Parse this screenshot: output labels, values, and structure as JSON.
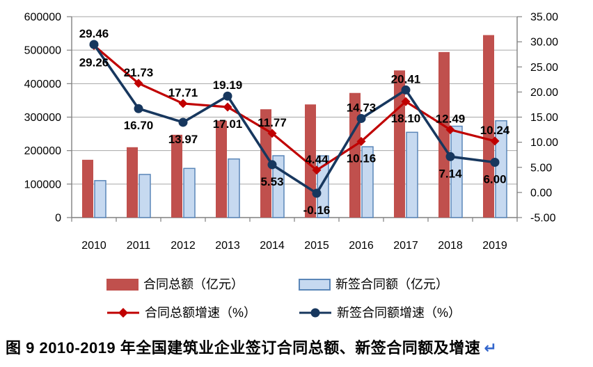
{
  "chart_data": {
    "type": "bar",
    "subtype": "bar-line-combo-dual-axis",
    "categories": [
      "2010",
      "2011",
      "2012",
      "2013",
      "2014",
      "2015",
      "2016",
      "2017",
      "2018",
      "2019"
    ],
    "series": [
      {
        "name": "合同总额（亿元）",
        "render": "bar",
        "axis": "left",
        "color": "#C0504D",
        "values": [
          172600,
          210100,
          247300,
          289400,
          323500,
          337900,
          372200,
          439500,
          494400,
          545000
        ]
      },
      {
        "name": "新签合同额（亿元）",
        "render": "bar",
        "axis": "left",
        "color": "#C6D9F0",
        "border_color": "#5A86B8",
        "values": [
          110400,
          128800,
          146800,
          175000,
          184700,
          184400,
          211500,
          254700,
          272900,
          289200
        ]
      },
      {
        "name": "合同总额增速（%）",
        "render": "line",
        "axis": "right",
        "color": "#C00000",
        "marker": "diamond",
        "values": [
          29.26,
          21.73,
          17.71,
          17.01,
          11.77,
          4.44,
          10.16,
          18.1,
          12.49,
          10.24
        ],
        "point_labels": [
          "29.26",
          "21.73",
          "17.71",
          "17.01",
          "11.77",
          "4.44",
          "10.16",
          "18.10",
          "12.49",
          "10.24"
        ]
      },
      {
        "name": "新签合同额增速（%）",
        "render": "line",
        "axis": "right",
        "color": "#17375E",
        "marker": "circle",
        "values": [
          29.46,
          16.7,
          13.97,
          19.19,
          5.53,
          -0.16,
          14.73,
          20.41,
          7.14,
          6.0
        ],
        "point_labels": [
          "29.46",
          "16.70",
          "13.97",
          "19.19",
          "5.53",
          "-0.16",
          "14.73",
          "20.41",
          "7.14",
          "6.00"
        ]
      }
    ],
    "left_axis": {
      "min": 0,
      "max": 600000,
      "step": 100000,
      "tick_labels": [
        "600000",
        "500000",
        "400000",
        "300000",
        "200000",
        "100000",
        "0"
      ]
    },
    "right_axis": {
      "min": -5,
      "max": 35,
      "step": 5,
      "tick_labels": [
        "35.00",
        "30.00",
        "25.00",
        "20.00",
        "15.00",
        "10.00",
        "5.00",
        "0.00",
        "-5.00"
      ]
    },
    "grid": true,
    "legend_position": "bottom"
  },
  "colors": {
    "gridline": "#A6A6A6",
    "axis": "#808080",
    "text": "#000000",
    "background": "#FFFFFF"
  },
  "caption": {
    "text": "图 9 2010-2019 年全国建筑业企业签订合同总额、新签合同额及增速",
    "return_mark": "↵",
    "return_color": "#3366CC"
  }
}
